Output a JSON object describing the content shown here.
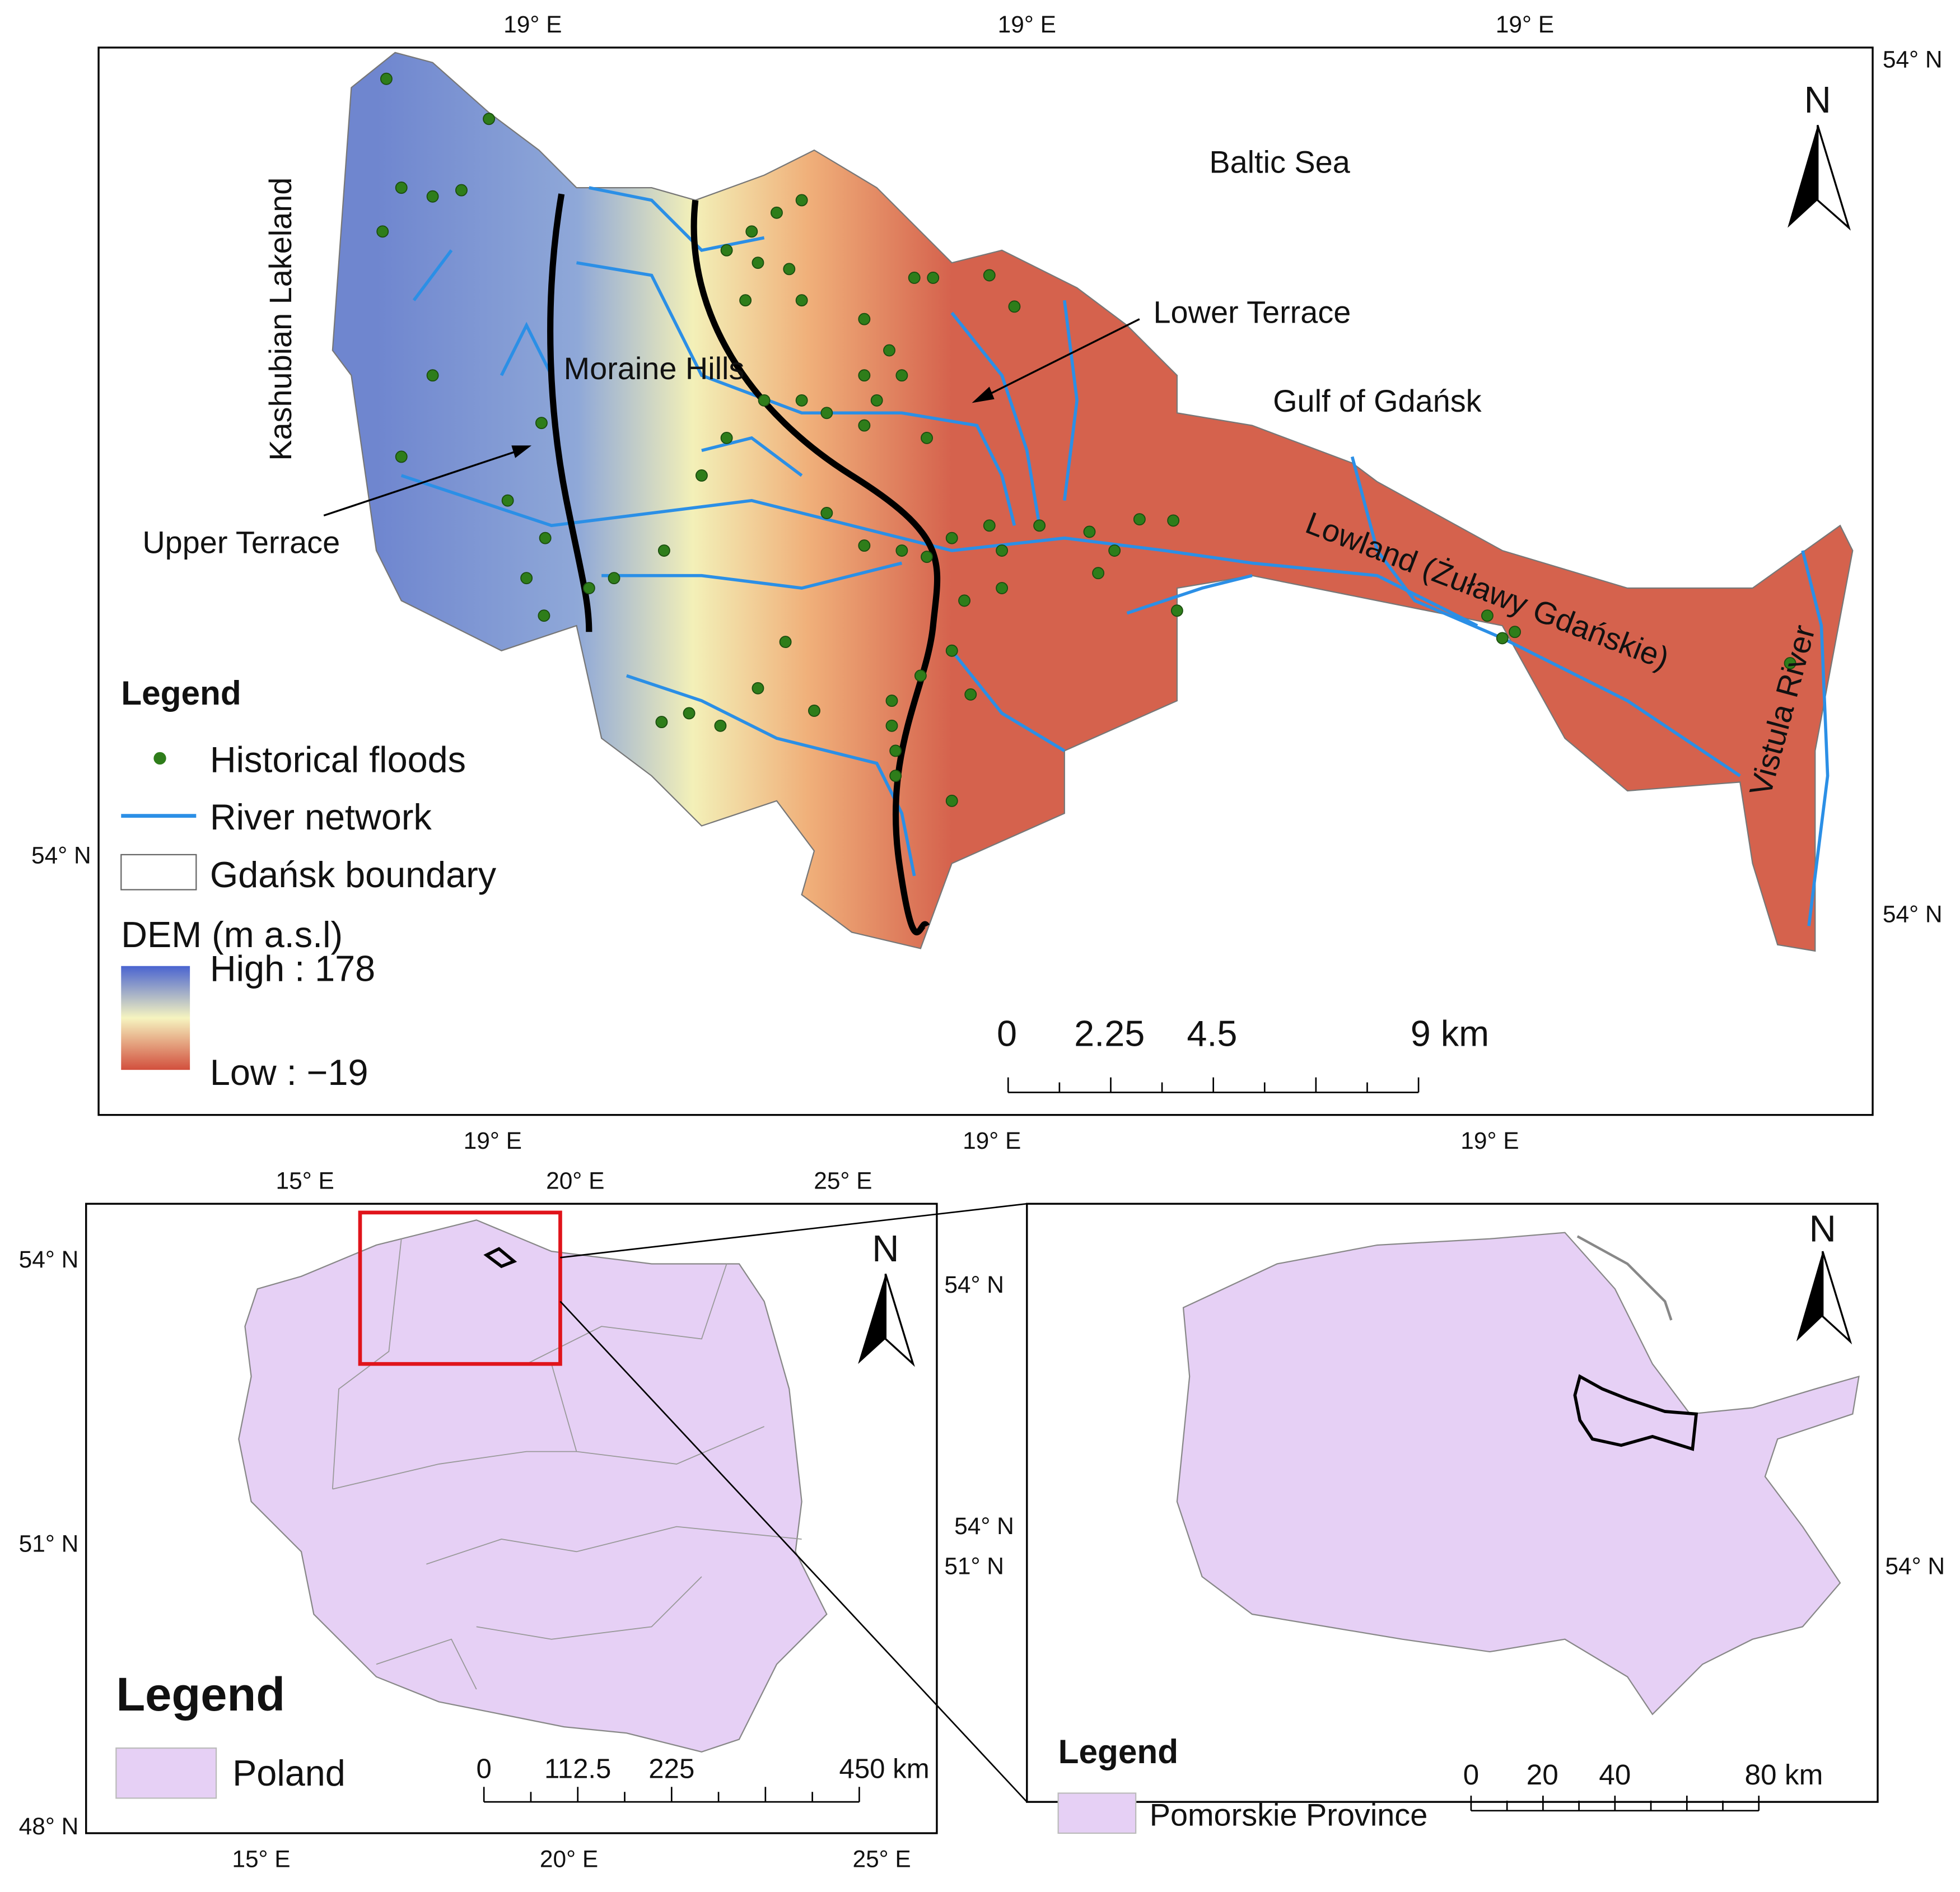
{
  "main_map": {
    "labels": [
      "Baltic Sea",
      "Kashubian Lakeland",
      "Moraine Hills",
      "Lower Terrace",
      "Gulf of Gdańsk",
      "Upper Terrace",
      "Lowland (Żuławy Gdańskie)",
      "Vistula River"
    ],
    "north": "N",
    "top_ticks": [
      "19° E",
      "19° E",
      "19° E"
    ],
    "bottom_ticks": [
      "19° E",
      "19° E",
      "19° E"
    ],
    "left_ticks": [
      "54° N"
    ],
    "right_ticks": [
      "54° N",
      "54° N"
    ],
    "legend": {
      "title": "Legend",
      "items": [
        "Historical floods",
        "River network",
        "Gdańsk boundary"
      ],
      "dem_title": "DEM (m a.s.l)",
      "high": "High : 178",
      "low": "Low : −19"
    },
    "scale_bar": [
      "0",
      "2.25",
      "4.5",
      "9 km"
    ]
  },
  "poland_map": {
    "north": "N",
    "top_ticks": [
      "15° E",
      "20° E",
      "25° E"
    ],
    "bottom_ticks": [
      "15° E",
      "20° E",
      "25° E"
    ],
    "left_ticks": [
      "54° N",
      "51° N",
      "48° N"
    ],
    "right_ticks": [
      "54° N",
      "54° N",
      "51° N"
    ],
    "legend": {
      "title": "Legend",
      "items": [
        "Poland"
      ]
    },
    "scale_bar": [
      "0",
      "112.5",
      "225",
      "450 km"
    ]
  },
  "pomorskie_map": {
    "north": "N",
    "right_ticks": [
      "54° N"
    ],
    "legend": {
      "title": "Legend",
      "items": [
        "Pomorskie Province"
      ]
    },
    "scale_bar": [
      "0",
      "20",
      "40",
      "80 km"
    ]
  }
}
